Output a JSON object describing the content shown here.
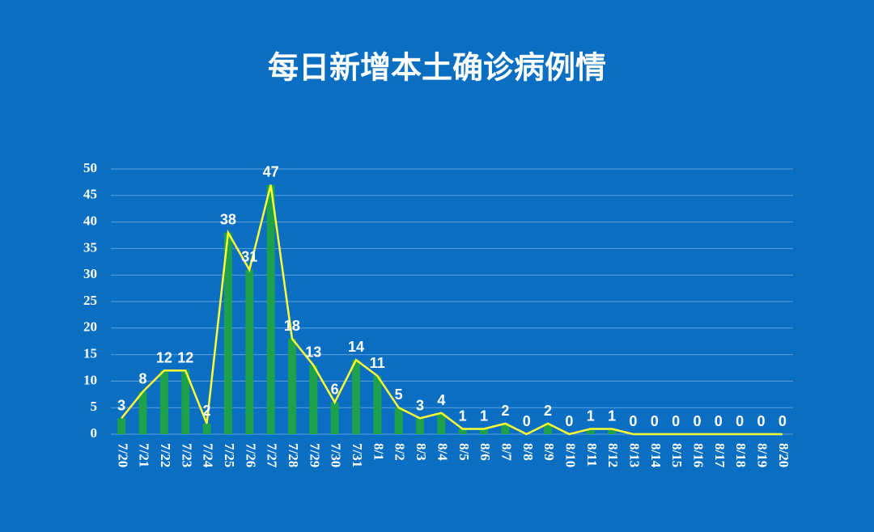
{
  "chart_data": {
    "type": "bar",
    "title": "每日新增本土确诊病例情",
    "categories": [
      "7/20",
      "7/21",
      "7/22",
      "7/23",
      "7/24",
      "7/25",
      "7/26",
      "7/27",
      "7/28",
      "7/29",
      "7/30",
      "7/31",
      "8/1",
      "8/2",
      "8/3",
      "8/4",
      "8/5",
      "8/6",
      "8/7",
      "8/8",
      "8/9",
      "8/10",
      "8/11",
      "8/12",
      "8/13",
      "8/14",
      "8/15",
      "8/16",
      "8/17",
      "8/18",
      "8/19",
      "8/20"
    ],
    "series": [
      {
        "type": "bar",
        "color": "#1ea04c",
        "values": [
          3,
          8,
          12,
          12,
          2,
          38,
          31,
          47,
          18,
          13,
          6,
          14,
          11,
          5,
          3,
          4,
          1,
          1,
          2,
          0,
          2,
          0,
          1,
          1,
          0,
          0,
          0,
          0,
          0,
          0,
          0,
          0
        ]
      },
      {
        "type": "line",
        "color": "#ffff33",
        "values": [
          3,
          8,
          12,
          12,
          2,
          38,
          31,
          47,
          18,
          13,
          6,
          14,
          11,
          5,
          3,
          4,
          1,
          1,
          2,
          0,
          2,
          0,
          1,
          1,
          0,
          0,
          0,
          0,
          0,
          0,
          0,
          0
        ]
      }
    ],
    "ylim": [
      0,
      50
    ],
    "yticks": [
      0,
      5,
      10,
      15,
      20,
      25,
      30,
      35,
      40,
      45,
      50
    ],
    "grid": true
  }
}
